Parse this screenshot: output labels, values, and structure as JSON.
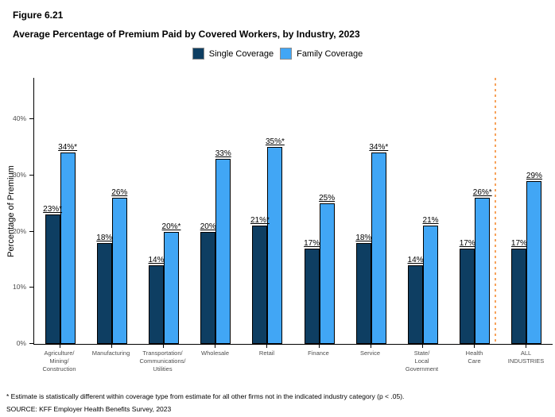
{
  "figure": {
    "number": "Figure 6.21",
    "title": "Average Percentage of Premium Paid by Covered Workers, by Industry, 2023"
  },
  "legend": [
    {
      "label": "Single Coverage",
      "color": "#0e3e62"
    },
    {
      "label": "Family Coverage",
      "color": "#41a6f5"
    }
  ],
  "footnotes": {
    "asterisk": "* Estimate is statistically different within coverage type from estimate for all other firms not in the indicated industry category (p < .05).",
    "source": "SOURCE: KFF Employer Health Benefits Survey, 2023"
  },
  "chart_data": {
    "type": "bar",
    "title": "Average Percentage of Premium Paid by Covered Workers, by Industry, 2023",
    "ylabel": "Percentage of Premium",
    "xlabel": "",
    "ylim": [
      0,
      47.5
    ],
    "grid": false,
    "legend_position": "top",
    "categories": [
      "Agriculture/\nMining/\nConstruction",
      "Manufacturing",
      "Transportation/\nCommunications/\nUtilities",
      "Wholesale",
      "Retail",
      "Finance",
      "Service",
      "State/\nLocal\nGovernment",
      "Health\nCare",
      "ALL\nINDUSTRIES"
    ],
    "series": [
      {
        "name": "Single Coverage",
        "color": "#0e3e62",
        "values": [
          23,
          18,
          14,
          20,
          21,
          17,
          18,
          14,
          17,
          17
        ],
        "labels": [
          "23%*",
          "18%",
          "14%",
          "20%",
          "21%*",
          "17%",
          "18%",
          "14%",
          "17%",
          "17%"
        ]
      },
      {
        "name": "Family Coverage",
        "color": "#41a6f5",
        "values": [
          34,
          26,
          20,
          33,
          35,
          25,
          34,
          21,
          26,
          29
        ],
        "labels": [
          "34%*",
          "26%",
          "20%*",
          "33%",
          "35%*",
          "25%",
          "34%*",
          "21%",
          "26%*",
          "29%"
        ]
      }
    ],
    "yticks": [
      {
        "value": 0,
        "label": "0%"
      },
      {
        "value": 10,
        "label": "10%"
      },
      {
        "value": 20,
        "label": "20%"
      },
      {
        "value": 30,
        "label": "30%"
      },
      {
        "value": 40,
        "label": "40%"
      }
    ],
    "separator_before_category": "ALL\nINDUSTRIES",
    "separator_color": "#f7a35c"
  }
}
